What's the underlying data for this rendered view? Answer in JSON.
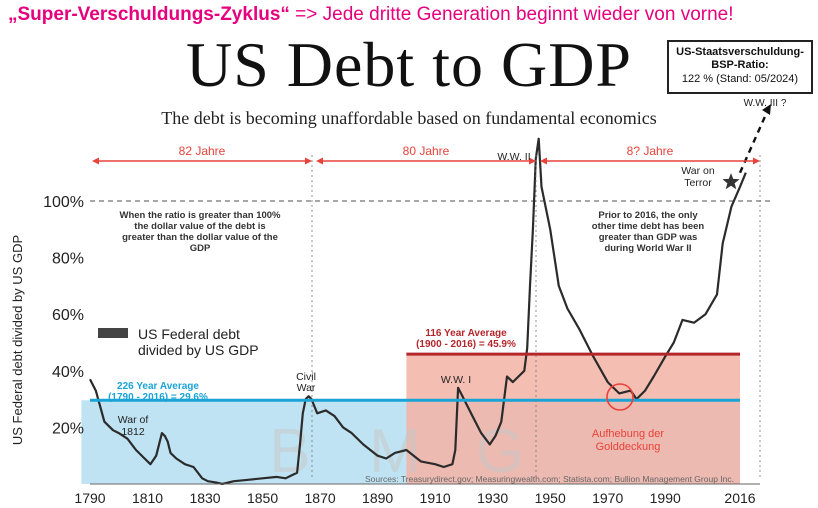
{
  "headline": {
    "bold": "„Super-Verschuldungs-Zyklus“",
    "rest": " => Jede dritte Generation beginnt wieder von vorne!"
  },
  "ratio_box": {
    "title": "US-Staatsverschuldung-BSP-Ratio:",
    "value": "122 % (Stand: 05/2024)"
  },
  "colors": {
    "headline": "#e6007e",
    "series_line": "#2b2b2b",
    "avg226_band": "#bfe3f3",
    "avg226_line": "#1aa3d6",
    "avg116_band": "#f3b3a5",
    "avg116_line": "#b3262b",
    "cycle_arrow": "#e8423a",
    "circle": "#e8423a"
  },
  "chart_data": {
    "type": "line",
    "title": "US Debt to GDP",
    "subtitle": "The debt is becoming unaffordable based on fundamental economics",
    "ylabel": "US Federal debt divided by US GDP",
    "xlabel": "",
    "xlim": [
      1787,
      2024
    ],
    "ylim": [
      0,
      120
    ],
    "x_ticks": [
      1790,
      1810,
      1830,
      1850,
      1870,
      1890,
      1910,
      1930,
      1950,
      1970,
      1990,
      2016
    ],
    "y_ticks": [
      {
        "value": 20,
        "label": "20%"
      },
      {
        "value": 40,
        "label": "40%"
      },
      {
        "value": 60,
        "label": "60%"
      },
      {
        "value": 80,
        "label": "80%"
      },
      {
        "value": 100,
        "label": "100%"
      }
    ],
    "legend": "US Federal debt divided by US GDP",
    "series": [
      {
        "name": "US Federal debt divided by US GDP",
        "x": [
          1790,
          1792,
          1795,
          1798,
          1800,
          1803,
          1806,
          1809,
          1811,
          1813,
          1815,
          1816,
          1817,
          1818,
          1820,
          1823,
          1826,
          1829,
          1831,
          1834,
          1836,
          1840,
          1845,
          1850,
          1855,
          1858,
          1860,
          1862,
          1863,
          1864,
          1865,
          1866,
          1867,
          1869,
          1872,
          1875,
          1878,
          1881,
          1885,
          1890,
          1893,
          1896,
          1900,
          1905,
          1910,
          1913,
          1916,
          1917,
          1918,
          1919,
          1920,
          1923,
          1926,
          1929,
          1931,
          1933,
          1935,
          1937,
          1939,
          1941,
          1942,
          1943,
          1944,
          1945,
          1946,
          1947,
          1948,
          1950,
          1953,
          1956,
          1960,
          1965,
          1970,
          1974,
          1978,
          1980,
          1983,
          1986,
          1990,
          1993,
          1996,
          2000,
          2004,
          2008,
          2010,
          2013,
          2016,
          2018
        ],
        "y": [
          37,
          33,
          22,
          19,
          18,
          16,
          12,
          9,
          7,
          10,
          18,
          17,
          15,
          11,
          9,
          7,
          6,
          2,
          1,
          0.5,
          0,
          1,
          1.5,
          2,
          2.5,
          2,
          3,
          4,
          14,
          25,
          30,
          31,
          30,
          25,
          26,
          24,
          20,
          18,
          14,
          10,
          9,
          11,
          12,
          8,
          7,
          6,
          7,
          12,
          34,
          32,
          30,
          24,
          18,
          14,
          17,
          22,
          38,
          36,
          38,
          40,
          48,
          70,
          90,
          115,
          122,
          105,
          100,
          90,
          70,
          62,
          55,
          45,
          36,
          32,
          33,
          30,
          33,
          38,
          45,
          50,
          58,
          57,
          60,
          67,
          85,
          98,
          105,
          110
        ]
      }
    ],
    "annotations": [
      {
        "id": "civil-war",
        "text": "Civil War",
        "x": 1864,
        "y": 34
      },
      {
        "id": "war-1812",
        "text": "War of 1812",
        "x": 1814,
        "y": 20
      },
      {
        "id": "ww1",
        "text": "W.W. I",
        "x": 1917,
        "y": 38
      },
      {
        "id": "ww2",
        "text": "W.W. II",
        "x": 1939,
        "y": 116
      },
      {
        "id": "war-terror",
        "text": "War on Terror",
        "x": 2005,
        "y": 110
      },
      {
        "id": "ww3",
        "text": "W.W. III ?",
        "x": 2014,
        "y": 150
      },
      {
        "id": "ratio-note",
        "text": "When the ratio is greater than 100% the dollar value of the debt is greater than the dollar value of the GDP"
      },
      {
        "id": "prior-note",
        "text": "Prior to 2016, the only other time debt has been greater than GDP was during World War II"
      },
      {
        "id": "gold",
        "text": "Aufhebung der Golddeckung",
        "x": 1973,
        "y": 31
      }
    ],
    "averages": [
      {
        "id": "avg226",
        "label_line1": "226 Year Average",
        "label_line2": "(1790 - 2016) = 29.6%",
        "value": 29.6,
        "x_start": 1787,
        "x_end": 2016
      },
      {
        "id": "avg116",
        "label_line1": "116 Year Average",
        "label_line2": "(1900 - 2016) = 45.9%",
        "value": 45.9,
        "x_start": 1900,
        "x_end": 2016
      }
    ],
    "cycles": [
      {
        "label": "82 Jahre",
        "x_start": 1787,
        "x_end": 1864
      },
      {
        "label": "80 Jahre",
        "x_start": 1864,
        "x_end": 1945
      },
      {
        "label": "8? Jahre",
        "x_start": 1945,
        "x_end": 2024
      }
    ],
    "watermark": "B M G",
    "sources": "Sources: Treasurydirect.gov; Measuringwealth.com; Statista.com; Bullion Management Group Inc."
  }
}
